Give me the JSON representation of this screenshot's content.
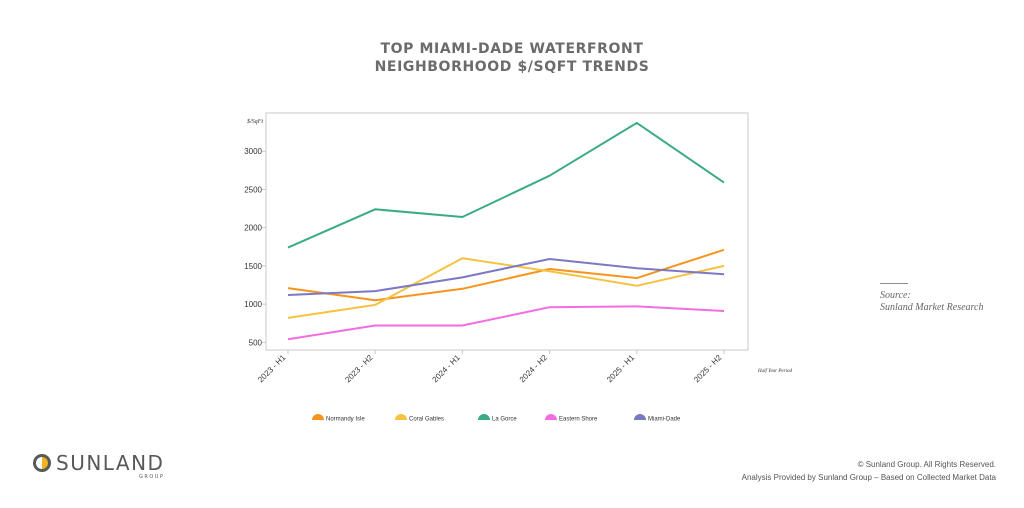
{
  "chart_data": {
    "type": "line",
    "title_lines": [
      "TOP MIAMI-DADE WATERFRONT",
      "NEIGHBORHOOD $/SQFT TRENDS"
    ],
    "ylabel": "$/SqFt",
    "xlabel": "Half Year Period",
    "categories": [
      "2023 - H1",
      "2023 - H2",
      "2024 - H1",
      "2024 - H2",
      "2025 - H1",
      "2025 - H2"
    ],
    "ylim": [
      400,
      3500
    ],
    "yticks": [
      500,
      1000,
      1500,
      2000,
      2500,
      3000
    ],
    "grid": false,
    "legend_position": "bottom",
    "series": [
      {
        "name": "Normandy Isle",
        "color": "#f7941d",
        "values": [
          1210,
          1050,
          1200,
          1460,
          1340,
          1710
        ]
      },
      {
        "name": "Coral Gables",
        "color": "#f6c242",
        "values": [
          820,
          990,
          1600,
          1430,
          1240,
          1500
        ]
      },
      {
        "name": "La Gorce",
        "color": "#3aab84",
        "values": [
          1740,
          2240,
          2140,
          2680,
          3370,
          2590
        ]
      },
      {
        "name": "Eastern Shore",
        "color": "#f26ee0",
        "values": [
          540,
          720,
          720,
          960,
          970,
          910
        ]
      },
      {
        "name": "Miami-Dade",
        "color": "#7b78c4",
        "values": [
          1120,
          1170,
          1350,
          1590,
          1470,
          1390
        ]
      }
    ]
  },
  "source": {
    "line1": "Source:",
    "line2": "Sunland Market Research"
  },
  "logo": {
    "name": "SUNLAND",
    "sub": "GROUP"
  },
  "footer": {
    "line1": "© Sunland Group. All Rights Reserved.",
    "line2": "Analysis Provided by Sunland Group – Based on Collected Market Data"
  },
  "colors": {
    "title": "#6b6b6b",
    "axis_frame": "#c8c8c8",
    "logo_gray": "#58595b",
    "logo_gold": "#f2b321"
  }
}
